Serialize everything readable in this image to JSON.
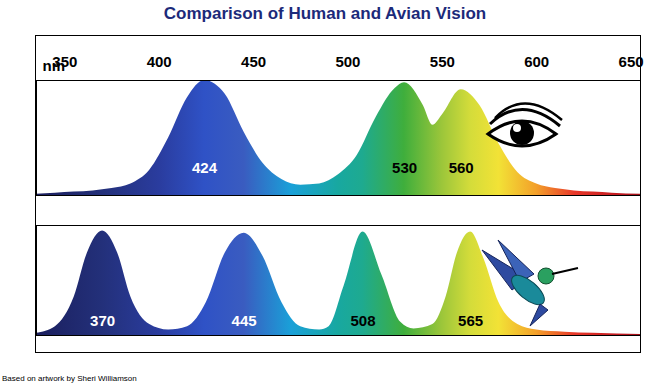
{
  "chart_data": [
    {
      "type": "area",
      "title": "Comparison of Human and Avian Vision",
      "x_label": "nm",
      "x": [
        335,
        345,
        355,
        365,
        375,
        385,
        395,
        405,
        415,
        424,
        435,
        445,
        455,
        465,
        475,
        485,
        495,
        505,
        515,
        525,
        530,
        540,
        545,
        550,
        560,
        570,
        580,
        590,
        600,
        610,
        620,
        630,
        640,
        655
      ],
      "values": [
        1,
        2,
        3,
        4,
        6,
        10,
        22,
        50,
        85,
        100,
        88,
        55,
        28,
        14,
        9,
        10,
        18,
        35,
        68,
        93,
        98,
        78,
        61,
        70,
        92,
        78,
        45,
        20,
        10,
        6,
        4,
        3,
        2,
        1
      ],
      "xlim": [
        335,
        655
      ],
      "xticks": [
        350,
        400,
        450,
        500,
        550,
        600,
        650
      ],
      "ylim": [
        0,
        100
      ],
      "tick_labels": "x",
      "annotations": [
        {
          "x": 424,
          "text": "424"
        },
        {
          "x": 530,
          "text": "530"
        },
        {
          "x": 560,
          "text": "560"
        }
      ]
    },
    {
      "type": "area",
      "x": [
        335,
        345,
        355,
        362,
        370,
        378,
        385,
        395,
        405,
        415,
        425,
        435,
        445,
        455,
        465,
        475,
        485,
        490,
        498,
        508,
        518,
        528,
        535,
        545,
        552,
        558,
        565,
        572,
        580,
        590,
        600,
        615,
        630,
        655
      ],
      "values": [
        2,
        8,
        35,
        75,
        95,
        75,
        35,
        10,
        5,
        8,
        30,
        75,
        93,
        72,
        30,
        8,
        5,
        8,
        45,
        94,
        55,
        12,
        6,
        10,
        35,
        75,
        94,
        70,
        30,
        10,
        5,
        3,
        2,
        1
      ],
      "xlim": [
        335,
        655
      ],
      "ylim": [
        0,
        100
      ],
      "tick_labels": false,
      "annotations": [
        {
          "x": 370,
          "text": "370"
        },
        {
          "x": 445,
          "text": "445"
        },
        {
          "x": 508,
          "text": "508"
        },
        {
          "x": 565,
          "text": "565"
        }
      ],
      "caption": "Based on artwork by Sheri Williamson"
    }
  ]
}
